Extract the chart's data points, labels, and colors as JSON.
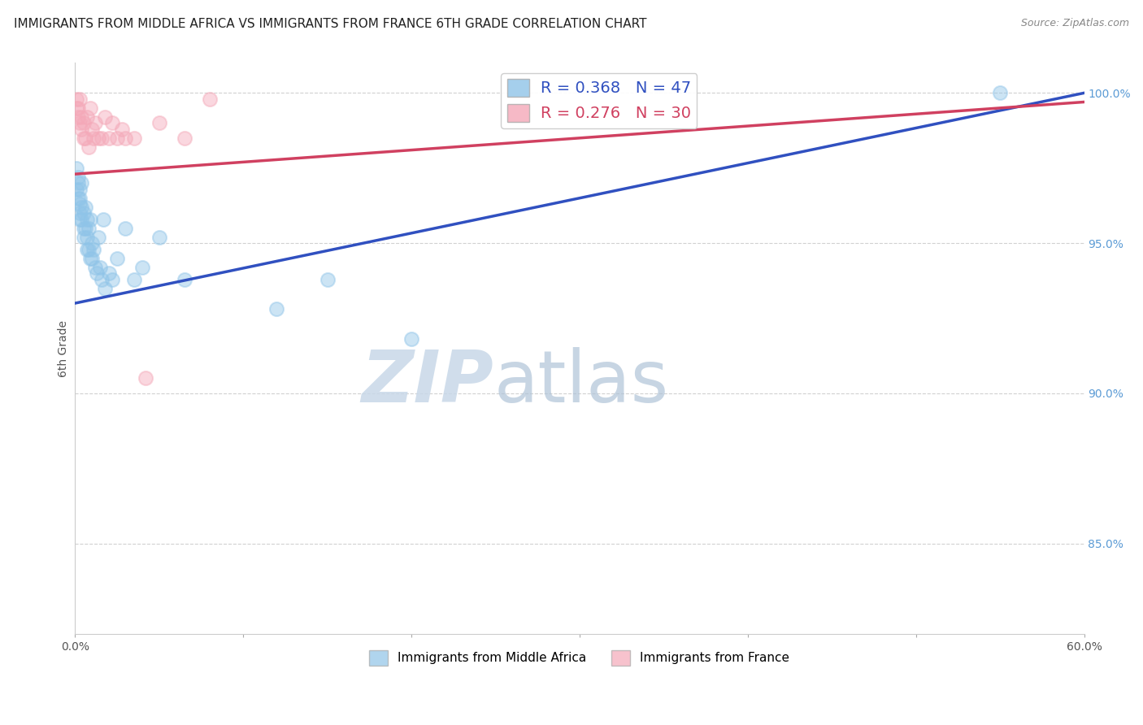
{
  "title": "IMMIGRANTS FROM MIDDLE AFRICA VS IMMIGRANTS FROM FRANCE 6TH GRADE CORRELATION CHART",
  "source": "Source: ZipAtlas.com",
  "xlabel_legend_1": "Immigrants from Middle Africa",
  "xlabel_legend_2": "Immigrants from France",
  "ylabel": "6th Grade",
  "R1": 0.368,
  "N1": 47,
  "R2": 0.276,
  "N2": 30,
  "color1": "#8fc4e8",
  "color2": "#f4a8b8",
  "trendline1_color": "#3050c0",
  "trendline2_color": "#d04060",
  "xlim": [
    0.0,
    0.6
  ],
  "ylim": [
    0.82,
    1.01
  ],
  "ytick_positions": [
    0.85,
    0.9,
    0.95,
    1.0
  ],
  "ytick_labels": [
    "85.0%",
    "90.0%",
    "95.0%",
    "100.0%"
  ],
  "blue_x": [
    0.001,
    0.001,
    0.002,
    0.002,
    0.002,
    0.003,
    0.003,
    0.003,
    0.003,
    0.003,
    0.004,
    0.004,
    0.004,
    0.005,
    0.005,
    0.005,
    0.006,
    0.006,
    0.007,
    0.007,
    0.007,
    0.008,
    0.008,
    0.009,
    0.009,
    0.01,
    0.01,
    0.011,
    0.012,
    0.013,
    0.014,
    0.015,
    0.016,
    0.017,
    0.018,
    0.02,
    0.022,
    0.025,
    0.03,
    0.035,
    0.04,
    0.05,
    0.065,
    0.12,
    0.15,
    0.2,
    0.55
  ],
  "blue_y": [
    0.968,
    0.975,
    0.972,
    0.965,
    0.97,
    0.968,
    0.965,
    0.963,
    0.96,
    0.958,
    0.97,
    0.962,
    0.958,
    0.96,
    0.955,
    0.952,
    0.962,
    0.955,
    0.958,
    0.952,
    0.948,
    0.955,
    0.948,
    0.958,
    0.945,
    0.95,
    0.945,
    0.948,
    0.942,
    0.94,
    0.952,
    0.942,
    0.938,
    0.958,
    0.935,
    0.94,
    0.938,
    0.945,
    0.955,
    0.938,
    0.942,
    0.952,
    0.938,
    0.928,
    0.938,
    0.918,
    1.0
  ],
  "blue_trendline_x": [
    0.0,
    0.6
  ],
  "blue_trendline_y": [
    0.93,
    1.0
  ],
  "pink_x": [
    0.001,
    0.001,
    0.002,
    0.002,
    0.003,
    0.003,
    0.004,
    0.004,
    0.005,
    0.005,
    0.006,
    0.007,
    0.008,
    0.009,
    0.01,
    0.011,
    0.012,
    0.014,
    0.016,
    0.018,
    0.02,
    0.022,
    0.025,
    0.028,
    0.03,
    0.035,
    0.042,
    0.05,
    0.065,
    0.08
  ],
  "pink_y": [
    0.998,
    0.995,
    0.995,
    0.992,
    0.998,
    0.99,
    0.992,
    0.988,
    0.99,
    0.985,
    0.985,
    0.992,
    0.982,
    0.995,
    0.988,
    0.985,
    0.99,
    0.985,
    0.985,
    0.992,
    0.985,
    0.99,
    0.985,
    0.988,
    0.985,
    0.985,
    0.905,
    0.99,
    0.985,
    0.998
  ],
  "pink_trendline_x": [
    0.0,
    0.6
  ],
  "pink_trendline_y": [
    0.973,
    0.997
  ],
  "watermark_zip": "ZIP",
  "watermark_atlas": "atlas",
  "background_color": "#ffffff",
  "grid_color": "#cccccc",
  "title_fontsize": 11,
  "axis_label_fontsize": 10
}
